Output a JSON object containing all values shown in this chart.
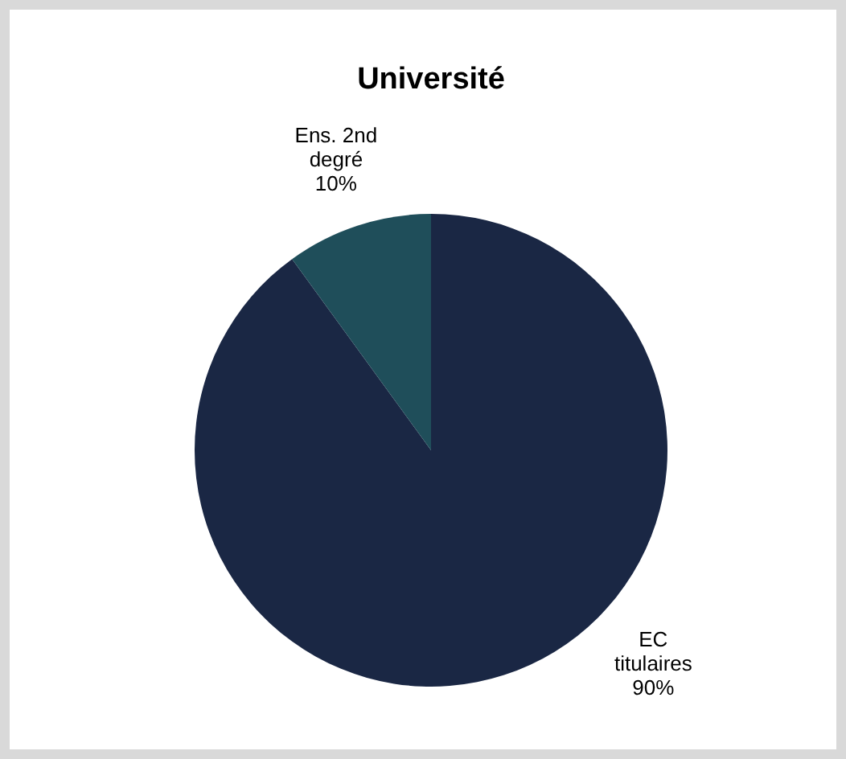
{
  "chart_data": {
    "type": "pie",
    "title": "Université",
    "categories": [
      "EC titulaires",
      "Ens. 2nd degré"
    ],
    "values": [
      90,
      10
    ],
    "value_labels": [
      "90%",
      "10%"
    ],
    "colors": [
      "#1a2744",
      "#1f4e5a"
    ]
  }
}
